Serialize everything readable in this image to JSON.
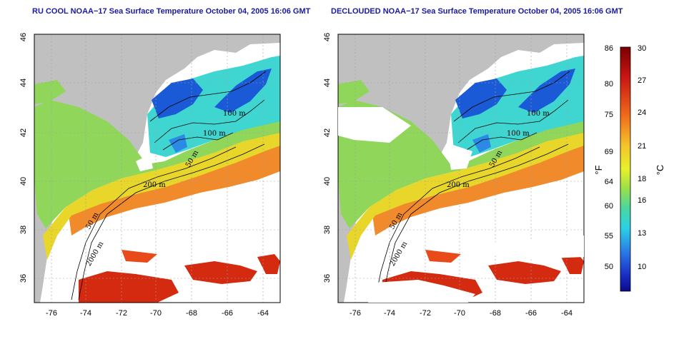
{
  "panels": [
    {
      "title": "RU COOL NOAA−17 Sea Surface Temperature October 04, 2005 16:06 GMT"
    },
    {
      "title": "DECLOUDED NOAA−17 Sea Surface Temperature October 04, 2005 16:06 GMT"
    }
  ],
  "axes": {
    "lon_ticks": [
      "-76",
      "-74",
      "-72",
      "-70",
      "-68",
      "-66",
      "-64"
    ],
    "lat_ticks": [
      "46",
      "44",
      "42",
      "40",
      "38",
      "36"
    ]
  },
  "contour_labels": [
    "100 m",
    "100 m",
    "50 m",
    "200 m",
    "50 m",
    "2000 m"
  ],
  "colorbar": {
    "f_label": "°F",
    "c_label": "°C",
    "f_ticks": [
      "86",
      "80",
      "75",
      "69",
      "64",
      "60",
      "55",
      "50"
    ],
    "c_ticks": [
      "30",
      "27",
      "24",
      "21",
      "18",
      "16",
      "13",
      "10"
    ]
  },
  "colors": {
    "land": "#c0c0c0",
    "title": "#1a1aa6",
    "warm": "#d42a10",
    "orange": "#f08a2a",
    "yellow": "#e8d62a",
    "green": "#8fd65a",
    "cyan": "#3fd6d2",
    "blue": "#1a5ad6"
  }
}
